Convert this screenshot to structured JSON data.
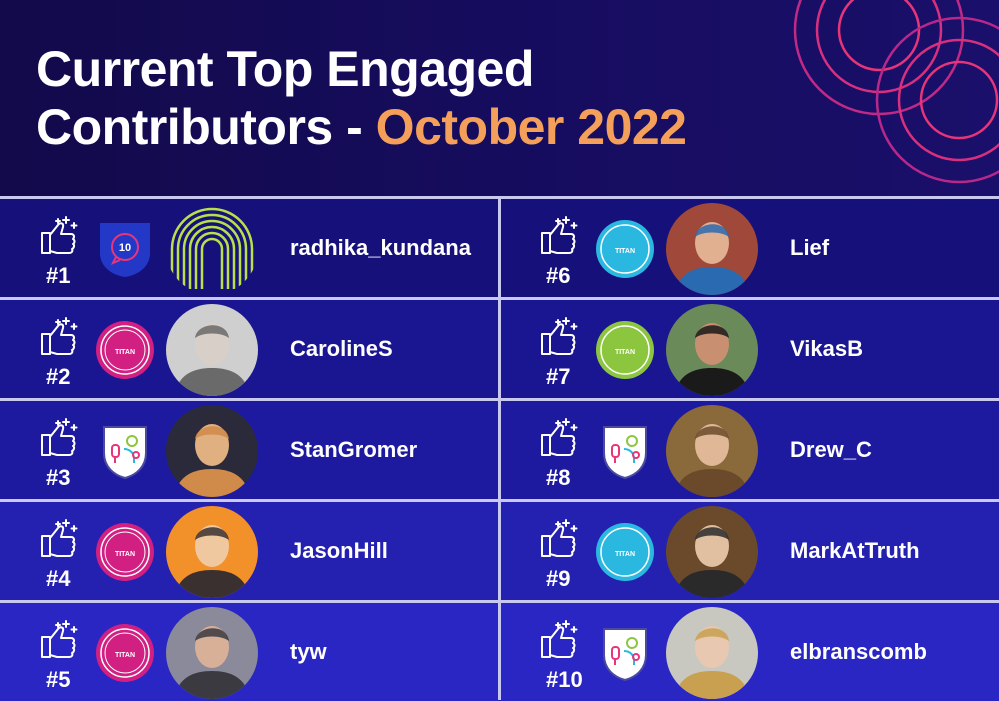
{
  "title": {
    "line1": "Current Top Engaged",
    "line2_prefix": "Contributors - ",
    "line2_highlight": "October 2022"
  },
  "colors": {
    "highlight": "#f5a05a",
    "pink": "#d11f82",
    "teal": "#2ab8e0",
    "lime": "#8cc63f"
  },
  "contributors": [
    {
      "rank": "#1",
      "name": "radhika_kundana",
      "badge": "shield-10",
      "badge_text": "10"
    },
    {
      "rank": "#2",
      "name": "CarolineS",
      "badge": "titan-pink"
    },
    {
      "rank": "#3",
      "name": "StanGromer",
      "badge": "idea-shield"
    },
    {
      "rank": "#4",
      "name": "JasonHill",
      "badge": "titan-pink"
    },
    {
      "rank": "#5",
      "name": "tyw",
      "badge": "titan-pink"
    },
    {
      "rank": "#6",
      "name": "Lief",
      "badge": "titan-teal"
    },
    {
      "rank": "#7",
      "name": "VikasB",
      "badge": "titan-lime"
    },
    {
      "rank": "#8",
      "name": "Drew_C",
      "badge": "idea-shield"
    },
    {
      "rank": "#9",
      "name": "MarkAtTruth",
      "badge": "titan-teal"
    },
    {
      "rank": "#10",
      "name": "elbranscomb",
      "badge": "idea-shield"
    }
  ],
  "badge_label": "TITAN"
}
